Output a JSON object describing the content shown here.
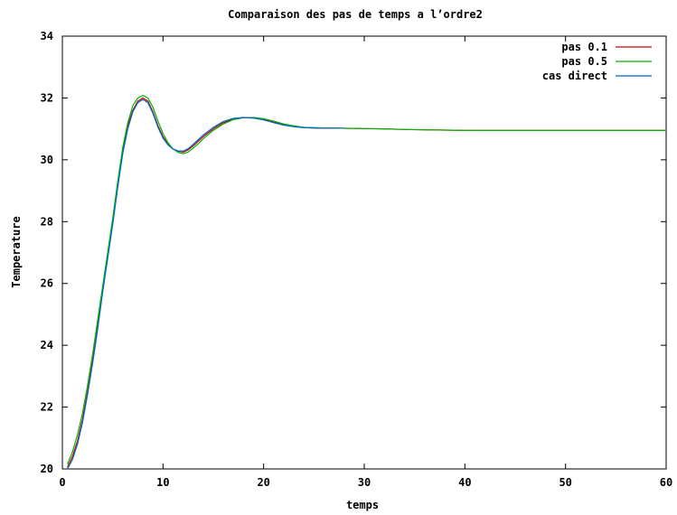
{
  "chart_data": {
    "type": "line",
    "title": "Comparaison des pas de temps a l’ordre2",
    "xlabel": "temps",
    "ylabel": "Temperature",
    "xlim": [
      0,
      60
    ],
    "ylim": [
      20,
      34
    ],
    "xticks": [
      0,
      10,
      20,
      30,
      40,
      50,
      60
    ],
    "yticks": [
      20,
      22,
      24,
      26,
      28,
      30,
      32,
      34
    ],
    "grid": false,
    "legend_position": "top-right",
    "series": [
      {
        "name": "pas 0.1",
        "color": "#cc0000",
        "x": [
          0.5,
          1,
          1.5,
          2,
          2.5,
          3,
          3.5,
          4,
          4.5,
          5,
          5.5,
          6,
          6.5,
          7,
          7.5,
          8,
          8.5,
          9,
          9.5,
          10,
          10.5,
          11,
          11.5,
          12,
          12.5,
          13,
          13.5,
          14,
          15,
          16,
          17,
          18,
          19,
          20,
          21,
          22,
          23,
          24,
          25,
          26,
          27,
          28,
          30,
          32,
          34,
          36,
          38,
          40,
          45,
          50,
          55,
          60
        ],
        "y": [
          20.05,
          20.4,
          20.9,
          21.6,
          22.5,
          23.5,
          24.6,
          25.8,
          26.9,
          28.0,
          29.2,
          30.3,
          31.1,
          31.6,
          31.9,
          32.0,
          31.9,
          31.55,
          31.1,
          30.75,
          30.5,
          30.35,
          30.28,
          30.25,
          30.32,
          30.45,
          30.6,
          30.75,
          31.0,
          31.2,
          31.32,
          31.36,
          31.35,
          31.3,
          31.22,
          31.14,
          31.08,
          31.04,
          31.03,
          31.02,
          31.02,
          31.02,
          31.01,
          31.0,
          30.98,
          30.97,
          30.96,
          30.95,
          30.95,
          30.95,
          30.95,
          30.95
        ]
      },
      {
        "name": "pas 0.5",
        "color": "#00b300",
        "x": [
          0.5,
          1,
          1.5,
          2,
          2.5,
          3,
          3.5,
          4,
          4.5,
          5,
          5.5,
          6,
          6.5,
          7,
          7.5,
          8,
          8.5,
          9,
          9.5,
          10,
          10.5,
          11,
          11.5,
          12,
          12.5,
          13,
          13.5,
          14,
          15,
          16,
          17,
          18,
          19,
          20,
          21,
          22,
          23,
          24,
          25,
          26,
          27,
          28,
          30,
          32,
          34,
          36,
          38,
          40,
          45,
          50,
          55,
          60
        ],
        "y": [
          20.15,
          20.55,
          21.1,
          21.8,
          22.7,
          23.7,
          24.8,
          25.9,
          27.0,
          28.1,
          29.3,
          30.4,
          31.2,
          31.75,
          32.0,
          32.08,
          32.0,
          31.7,
          31.25,
          30.85,
          30.55,
          30.35,
          30.24,
          30.2,
          30.25,
          30.38,
          30.52,
          30.68,
          30.95,
          31.16,
          31.3,
          31.36,
          31.37,
          31.33,
          31.25,
          31.16,
          31.1,
          31.05,
          31.04,
          31.03,
          31.03,
          31.02,
          31.01,
          31.0,
          30.98,
          30.97,
          30.96,
          30.95,
          30.95,
          30.95,
          30.95,
          30.95
        ]
      },
      {
        "name": "cas direct",
        "color": "#0066cc",
        "x": [
          0.5,
          1,
          1.5,
          2,
          2.5,
          3,
          3.5,
          4,
          4.5,
          5,
          5.5,
          6,
          6.5,
          7,
          7.5,
          8,
          8.5,
          9,
          9.5,
          10,
          10.5,
          11,
          11.5,
          12,
          12.5,
          13,
          13.5,
          14,
          15,
          16,
          17,
          18,
          19,
          20,
          21,
          22,
          23,
          24,
          25,
          26,
          27,
          28
        ],
        "y": [
          20.0,
          20.3,
          20.8,
          21.5,
          22.4,
          23.4,
          24.5,
          25.7,
          26.8,
          27.9,
          29.1,
          30.2,
          31.0,
          31.55,
          31.85,
          31.95,
          31.85,
          31.5,
          31.05,
          30.7,
          30.48,
          30.34,
          30.29,
          30.28,
          30.36,
          30.5,
          30.65,
          30.8,
          31.05,
          31.24,
          31.34,
          31.37,
          31.35,
          31.29,
          31.2,
          31.12,
          31.07,
          31.04,
          31.03,
          31.02,
          31.02,
          31.02
        ]
      }
    ]
  }
}
